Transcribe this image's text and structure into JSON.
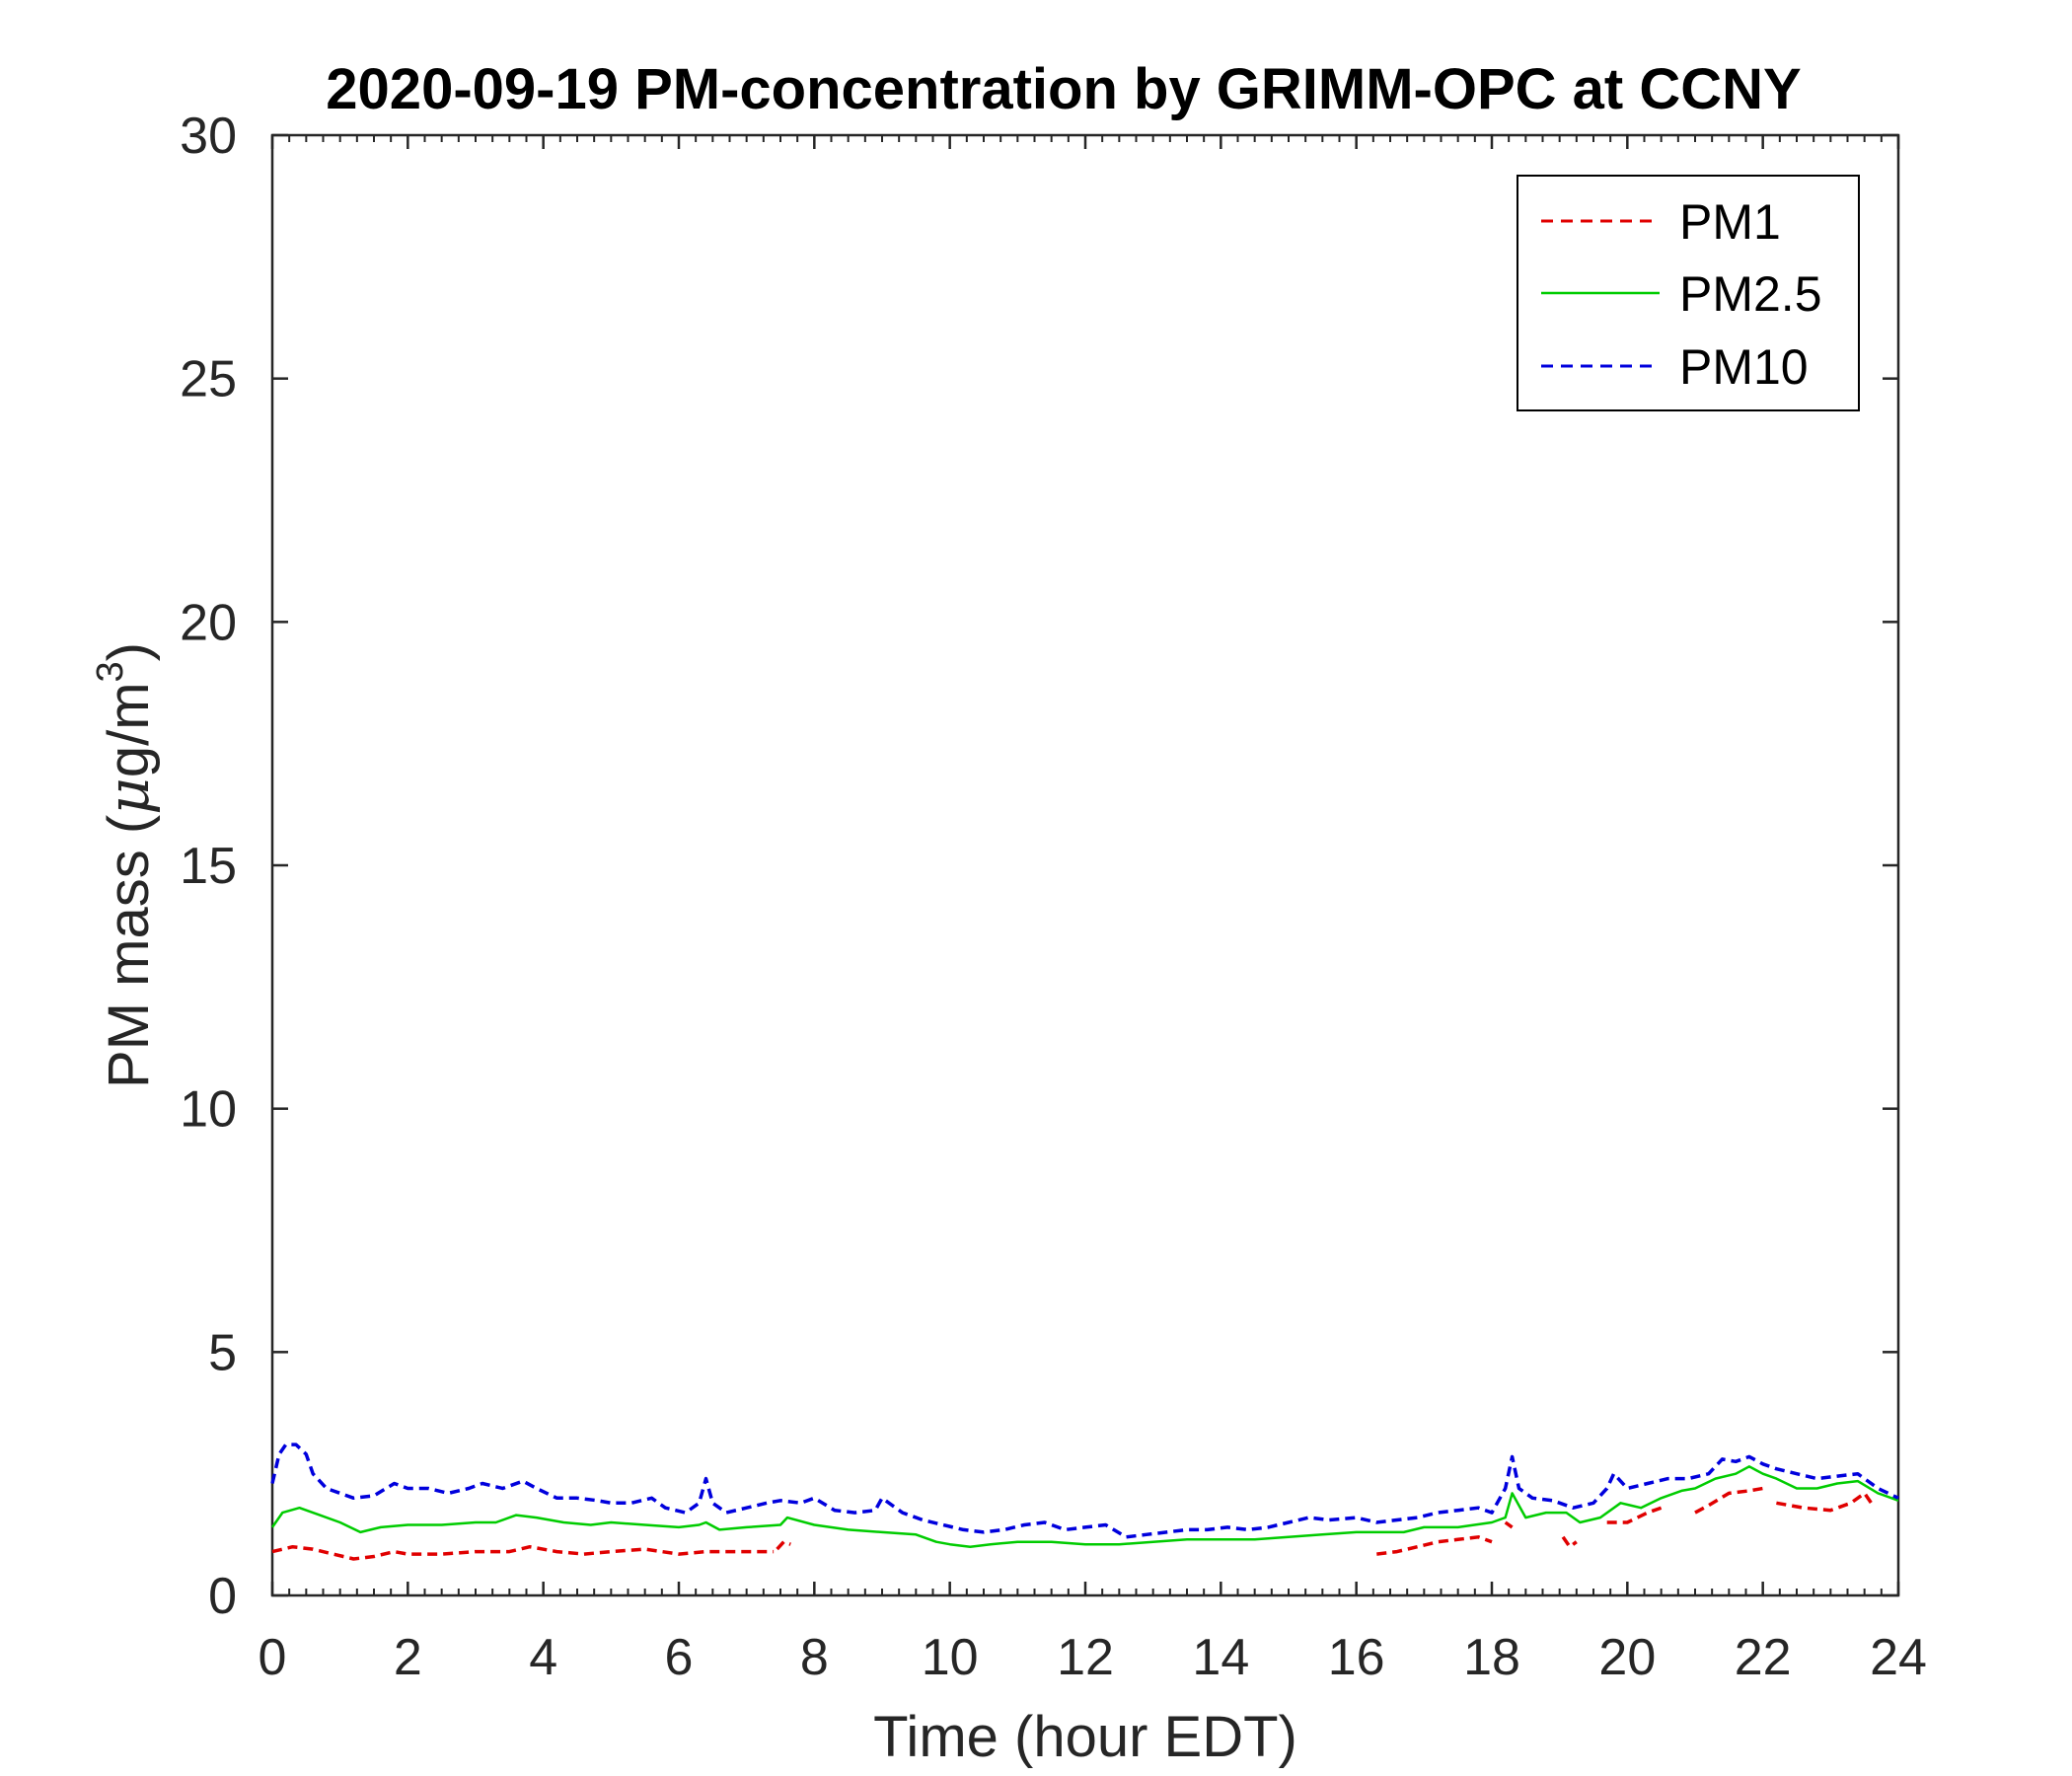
{
  "chart_data": {
    "type": "line",
    "title": "2020-09-19 PM-concentration by GRIMM-OPC at CCNY",
    "xlabel": "Time (hour EDT)",
    "ylabel_main": "PM mass (",
    "ylabel_mu": "μ",
    "ylabel_unit": "g/m",
    "ylabel_sup": "3",
    "ylabel_close": ")",
    "xlim": [
      0,
      24
    ],
    "ylim": [
      0,
      30
    ],
    "xticks": [
      "0",
      "2",
      "4",
      "6",
      "8",
      "10",
      "12",
      "14",
      "16",
      "18",
      "20",
      "22",
      "24"
    ],
    "yticks": [
      "0",
      "5",
      "10",
      "15",
      "20",
      "25",
      "30"
    ],
    "grid": false,
    "legend_position": "top-right",
    "series": [
      {
        "name": "PM1",
        "color": "#e00000",
        "dash": "dashed",
        "segments": [
          [
            [
              0,
              0.9
            ],
            [
              0.3,
              1.0
            ],
            [
              0.6,
              0.95
            ],
            [
              0.9,
              0.85
            ],
            [
              1.2,
              0.75
            ],
            [
              1.5,
              0.8
            ],
            [
              1.8,
              0.9
            ],
            [
              2.0,
              0.85
            ],
            [
              2.5,
              0.85
            ],
            [
              3.0,
              0.9
            ],
            [
              3.5,
              0.9
            ],
            [
              3.8,
              1.0
            ],
            [
              4.2,
              0.9
            ],
            [
              4.6,
              0.85
            ],
            [
              5.0,
              0.9
            ],
            [
              5.5,
              0.95
            ],
            [
              6.0,
              0.85
            ],
            [
              6.4,
              0.9
            ],
            [
              6.8,
              0.9
            ],
            [
              7.2,
              0.9
            ],
            [
              7.4,
              0.9
            ]
          ],
          [
            [
              7.45,
              0.95
            ],
            [
              7.55,
              1.1
            ],
            [
              7.65,
              1.05
            ]
          ],
          [
            [
              16.3,
              0.85
            ],
            [
              16.6,
              0.9
            ],
            [
              16.9,
              1.0
            ],
            [
              17.2,
              1.1
            ],
            [
              17.5,
              1.15
            ],
            [
              17.8,
              1.2
            ],
            [
              18.0,
              1.1
            ]
          ],
          [
            [
              18.2,
              1.5
            ],
            [
              18.3,
              1.4
            ]
          ],
          [
            [
              19.05,
              1.2
            ],
            [
              19.15,
              1.0
            ],
            [
              19.25,
              1.1
            ]
          ],
          [
            [
              19.7,
              1.5
            ],
            [
              20.0,
              1.5
            ],
            [
              20.3,
              1.7
            ],
            [
              20.5,
              1.8
            ]
          ],
          [
            [
              21.0,
              1.7
            ],
            [
              21.2,
              1.85
            ],
            [
              21.5,
              2.1
            ],
            [
              21.8,
              2.15
            ],
            [
              22.0,
              2.2
            ]
          ],
          [
            [
              22.2,
              1.9
            ],
            [
              22.6,
              1.8
            ],
            [
              23.0,
              1.75
            ],
            [
              23.3,
              1.9
            ],
            [
              23.5,
              2.1
            ],
            [
              23.6,
              1.9
            ]
          ]
        ]
      },
      {
        "name": "PM2.5",
        "color": "#00cc00",
        "dash": "solid",
        "segments": [
          [
            [
              0,
              1.4
            ],
            [
              0.15,
              1.7
            ],
            [
              0.4,
              1.8
            ],
            [
              0.7,
              1.65
            ],
            [
              1.0,
              1.5
            ],
            [
              1.3,
              1.3
            ],
            [
              1.6,
              1.4
            ],
            [
              2.0,
              1.45
            ],
            [
              2.5,
              1.45
            ],
            [
              3.0,
              1.5
            ],
            [
              3.3,
              1.5
            ],
            [
              3.6,
              1.65
            ],
            [
              3.9,
              1.6
            ],
            [
              4.3,
              1.5
            ],
            [
              4.7,
              1.45
            ],
            [
              5.0,
              1.5
            ],
            [
              5.5,
              1.45
            ],
            [
              6.0,
              1.4
            ],
            [
              6.3,
              1.45
            ],
            [
              6.4,
              1.5
            ],
            [
              6.6,
              1.35
            ],
            [
              7.0,
              1.4
            ],
            [
              7.5,
              1.45
            ],
            [
              7.6,
              1.6
            ],
            [
              8.0,
              1.45
            ],
            [
              8.5,
              1.35
            ],
            [
              9.0,
              1.3
            ],
            [
              9.5,
              1.25
            ],
            [
              9.8,
              1.1
            ],
            [
              10.0,
              1.05
            ],
            [
              10.3,
              1.0
            ],
            [
              10.6,
              1.05
            ],
            [
              11.0,
              1.1
            ],
            [
              11.5,
              1.1
            ],
            [
              12.0,
              1.05
            ],
            [
              12.5,
              1.05
            ],
            [
              13.0,
              1.1
            ],
            [
              13.5,
              1.15
            ],
            [
              14.0,
              1.15
            ],
            [
              14.5,
              1.15
            ],
            [
              15.0,
              1.2
            ],
            [
              15.5,
              1.25
            ],
            [
              16.0,
              1.3
            ],
            [
              16.3,
              1.3
            ],
            [
              16.7,
              1.3
            ],
            [
              17.0,
              1.4
            ],
            [
              17.5,
              1.4
            ],
            [
              18.0,
              1.5
            ],
            [
              18.2,
              1.6
            ],
            [
              18.3,
              2.1
            ],
            [
              18.5,
              1.6
            ],
            [
              18.8,
              1.7
            ],
            [
              19.1,
              1.7
            ],
            [
              19.3,
              1.5
            ],
            [
              19.6,
              1.6
            ],
            [
              19.9,
              1.9
            ],
            [
              20.2,
              1.8
            ],
            [
              20.5,
              2.0
            ],
            [
              20.8,
              2.15
            ],
            [
              21.0,
              2.2
            ],
            [
              21.3,
              2.4
            ],
            [
              21.6,
              2.5
            ],
            [
              21.8,
              2.65
            ],
            [
              22.0,
              2.5
            ],
            [
              22.2,
              2.4
            ],
            [
              22.5,
              2.2
            ],
            [
              22.8,
              2.2
            ],
            [
              23.1,
              2.3
            ],
            [
              23.4,
              2.35
            ],
            [
              23.7,
              2.1
            ],
            [
              24.0,
              1.95
            ]
          ]
        ]
      },
      {
        "name": "PM10",
        "color": "#0000dd",
        "dash": "dashed",
        "segments": [
          [
            [
              0,
              2.3
            ],
            [
              0.1,
              2.9
            ],
            [
              0.2,
              3.1
            ],
            [
              0.35,
              3.1
            ],
            [
              0.5,
              2.9
            ],
            [
              0.6,
              2.5
            ],
            [
              0.8,
              2.2
            ],
            [
              1.0,
              2.1
            ],
            [
              1.2,
              2.0
            ],
            [
              1.5,
              2.05
            ],
            [
              1.8,
              2.3
            ],
            [
              2.0,
              2.2
            ],
            [
              2.3,
              2.2
            ],
            [
              2.6,
              2.1
            ],
            [
              2.9,
              2.2
            ],
            [
              3.1,
              2.3
            ],
            [
              3.4,
              2.2
            ],
            [
              3.7,
              2.35
            ],
            [
              3.9,
              2.2
            ],
            [
              4.2,
              2.0
            ],
            [
              4.5,
              2.0
            ],
            [
              4.8,
              1.95
            ],
            [
              5.0,
              1.9
            ],
            [
              5.3,
              1.9
            ],
            [
              5.6,
              2.0
            ],
            [
              5.8,
              1.8
            ],
            [
              6.1,
              1.7
            ],
            [
              6.3,
              1.9
            ],
            [
              6.4,
              2.4
            ],
            [
              6.5,
              1.9
            ],
            [
              6.7,
              1.7
            ],
            [
              7.0,
              1.8
            ],
            [
              7.3,
              1.9
            ],
            [
              7.5,
              1.95
            ],
            [
              7.8,
              1.9
            ],
            [
              8.0,
              2.0
            ],
            [
              8.3,
              1.75
            ],
            [
              8.6,
              1.7
            ],
            [
              8.9,
              1.75
            ],
            [
              9.0,
              2.0
            ],
            [
              9.3,
              1.7
            ],
            [
              9.6,
              1.55
            ],
            [
              9.9,
              1.45
            ],
            [
              10.2,
              1.35
            ],
            [
              10.5,
              1.3
            ],
            [
              10.8,
              1.35
            ],
            [
              11.1,
              1.45
            ],
            [
              11.4,
              1.5
            ],
            [
              11.7,
              1.35
            ],
            [
              12.0,
              1.4
            ],
            [
              12.3,
              1.45
            ],
            [
              12.6,
              1.2
            ],
            [
              12.9,
              1.25
            ],
            [
              13.2,
              1.3
            ],
            [
              13.5,
              1.35
            ],
            [
              13.8,
              1.35
            ],
            [
              14.1,
              1.4
            ],
            [
              14.4,
              1.35
            ],
            [
              14.7,
              1.4
            ],
            [
              15.0,
              1.5
            ],
            [
              15.3,
              1.6
            ],
            [
              15.6,
              1.55
            ],
            [
              16.0,
              1.6
            ],
            [
              16.3,
              1.5
            ],
            [
              16.6,
              1.55
            ],
            [
              16.9,
              1.6
            ],
            [
              17.2,
              1.7
            ],
            [
              17.5,
              1.75
            ],
            [
              17.8,
              1.8
            ],
            [
              18.0,
              1.7
            ],
            [
              18.2,
              2.2
            ],
            [
              18.3,
              2.85
            ],
            [
              18.4,
              2.2
            ],
            [
              18.6,
              2.0
            ],
            [
              18.9,
              1.95
            ],
            [
              19.2,
              1.8
            ],
            [
              19.5,
              1.9
            ],
            [
              19.7,
              2.2
            ],
            [
              19.8,
              2.5
            ],
            [
              20.0,
              2.2
            ],
            [
              20.3,
              2.3
            ],
            [
              20.6,
              2.4
            ],
            [
              20.9,
              2.4
            ],
            [
              21.2,
              2.5
            ],
            [
              21.4,
              2.8
            ],
            [
              21.6,
              2.75
            ],
            [
              21.8,
              2.85
            ],
            [
              22.0,
              2.7
            ],
            [
              22.2,
              2.6
            ],
            [
              22.5,
              2.5
            ],
            [
              22.8,
              2.4
            ],
            [
              23.1,
              2.45
            ],
            [
              23.4,
              2.5
            ],
            [
              23.7,
              2.2
            ],
            [
              24.0,
              2.0
            ]
          ]
        ]
      }
    ]
  }
}
